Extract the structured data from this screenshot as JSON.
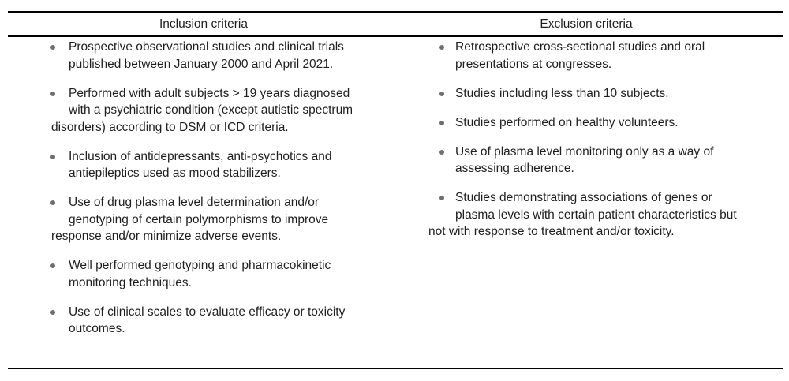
{
  "colors": {
    "text": "#1f1f1f",
    "bullet": "#6e6e6e",
    "rule": "#000000",
    "background": "#ffffff"
  },
  "table": {
    "columns": [
      {
        "header": "Inclusion criteria",
        "items": [
          {
            "lines": [
              {
                "text": "Prospective observational studies and clinical trials",
                "style": "first"
              },
              {
                "text": "published between January 2000 and April 2021.",
                "style": "cont"
              }
            ]
          },
          {
            "lines": [
              {
                "text": "Performed with adult subjects > 19 years diagnosed",
                "style": "first"
              },
              {
                "text": "with a psychiatric condition (except autistic spectrum",
                "style": "cont"
              },
              {
                "text": "disorders) according to DSM or ICD criteria.",
                "style": "hang"
              }
            ]
          },
          {
            "lines": [
              {
                "text": "Inclusion of antidepressants, anti-psychotics and",
                "style": "first"
              },
              {
                "text": "antiepileptics used as mood stabilizers.",
                "style": "cont"
              }
            ]
          },
          {
            "lines": [
              {
                "text": "Use of drug plasma level determination and/or",
                "style": "first"
              },
              {
                "text": "genotyping of certain polymorphisms to improve",
                "style": "cont"
              },
              {
                "text": "response and/or minimize adverse events.",
                "style": "hang"
              }
            ]
          },
          {
            "lines": [
              {
                "text": "Well performed genotyping and pharmacokinetic",
                "style": "first"
              },
              {
                "text": "monitoring techniques.",
                "style": "cont"
              }
            ]
          },
          {
            "lines": [
              {
                "text": "Use of clinical scales to evaluate efficacy or toxicity",
                "style": "first"
              },
              {
                "text": "outcomes.",
                "style": "cont"
              }
            ]
          }
        ]
      },
      {
        "header": "Exclusion criteria",
        "items": [
          {
            "lines": [
              {
                "text": "Retrospective cross-sectional studies and oral",
                "style": "first"
              },
              {
                "text": "presentations at congresses.",
                "style": "cont"
              }
            ]
          },
          {
            "lines": [
              {
                "text": "Studies including less than 10 subjects.",
                "style": "first"
              }
            ]
          },
          {
            "lines": [
              {
                "text": "Studies performed on healthy volunteers.",
                "style": "first"
              }
            ]
          },
          {
            "lines": [
              {
                "text": "Use of plasma level monitoring only as a way of",
                "style": "first"
              },
              {
                "text": "assessing adherence.",
                "style": "cont"
              }
            ]
          },
          {
            "lines": [
              {
                "text": "Studies demonstrating associations of genes or",
                "style": "first"
              },
              {
                "text": "plasma levels with certain patient characteristics but",
                "style": "cont"
              },
              {
                "text": "not with response to treatment and/or toxicity.",
                "style": "hang"
              }
            ]
          }
        ]
      }
    ]
  }
}
